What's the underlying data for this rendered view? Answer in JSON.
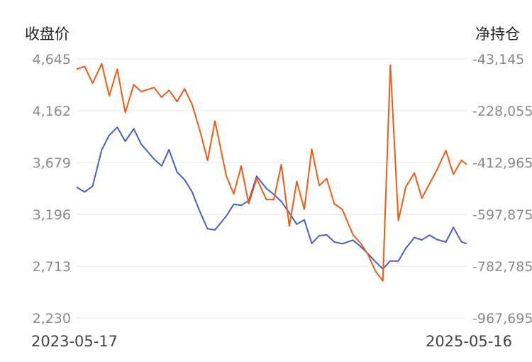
{
  "chart_data": {
    "type": "line",
    "left_axis_title": "收盘价",
    "right_axis_title": "净持仓",
    "left_ticks": [
      "4,645",
      "4,162",
      "3,679",
      "3,196",
      "2,713",
      "2,230"
    ],
    "right_ticks": [
      "-43,145",
      "-228,055",
      "-412,965",
      "-597,875",
      "-782,785",
      "-967,695"
    ],
    "left_range": [
      2230,
      4645
    ],
    "right_range": [
      -967695,
      -43145
    ],
    "x_start_label": "2023-05-17",
    "x_end_label": "2025-05-16",
    "x_range": [
      "2023-05-17",
      "2025-05-16"
    ],
    "grid": true,
    "series": [
      {
        "axis": "left",
        "color": "#4a5fc1",
        "x": [
          "2023-05-17",
          "2023-06-01",
          "2023-06-16",
          "2023-07-03",
          "2023-07-17",
          "2023-08-01",
          "2023-08-16",
          "2023-09-01",
          "2023-09-15",
          "2023-10-09",
          "2023-10-23",
          "2023-11-06",
          "2023-11-21",
          "2023-12-05",
          "2023-12-19",
          "2024-01-03",
          "2024-01-17",
          "2024-01-31",
          "2024-02-21",
          "2024-03-06",
          "2024-03-20",
          "2024-04-03",
          "2024-04-18",
          "2024-05-06",
          "2024-05-20",
          "2024-06-03",
          "2024-06-18",
          "2024-07-02",
          "2024-07-16",
          "2024-07-30",
          "2024-08-13",
          "2024-08-27",
          "2024-09-10",
          "2024-09-25",
          "2024-10-15",
          "2024-10-29",
          "2024-11-12",
          "2024-11-26",
          "2024-12-10",
          "2024-12-24",
          "2025-01-08",
          "2025-01-22",
          "2025-02-07",
          "2025-02-21",
          "2025-03-07",
          "2025-03-21",
          "2025-04-07",
          "2025-04-21",
          "2025-05-06",
          "2025-05-16"
        ],
        "values": [
          3449,
          3405,
          3459,
          3798,
          3933,
          4008,
          3877,
          3993,
          3849,
          3712,
          3647,
          3799,
          3590,
          3519,
          3407,
          3218,
          3061,
          3051,
          3180,
          3290,
          3280,
          3324,
          3552,
          3438,
          3382,
          3316,
          3209,
          3104,
          3145,
          2924,
          2997,
          3005,
          2939,
          2922,
          2956,
          2898,
          2830,
          2755,
          2688,
          2762,
          2761,
          2880,
          2980,
          2958,
          3002,
          2962,
          2938,
          3075,
          2940,
          2923
        ]
      },
      {
        "axis": "right",
        "color": "#f15a12",
        "x": [
          "2023-05-17",
          "2023-06-01",
          "2023-06-16",
          "2023-07-03",
          "2023-07-17",
          "2023-08-01",
          "2023-08-16",
          "2023-09-01",
          "2023-09-15",
          "2023-10-09",
          "2023-10-23",
          "2023-11-06",
          "2023-11-21",
          "2023-12-05",
          "2023-12-19",
          "2024-01-03",
          "2024-01-17",
          "2024-01-31",
          "2024-02-21",
          "2024-03-06",
          "2024-03-20",
          "2024-04-03",
          "2024-04-18",
          "2024-05-06",
          "2024-05-20",
          "2024-06-03",
          "2024-06-18",
          "2024-07-02",
          "2024-07-16",
          "2024-07-30",
          "2024-08-13",
          "2024-08-27",
          "2024-09-10",
          "2024-09-25",
          "2024-10-15",
          "2024-10-29",
          "2024-11-12",
          "2024-11-26",
          "2024-12-10",
          "2024-12-24",
          "2025-01-08",
          "2025-01-22",
          "2025-02-07",
          "2025-02-21",
          "2025-03-07",
          "2025-03-21",
          "2025-04-07",
          "2025-04-21",
          "2025-05-06",
          "2025-05-16"
        ],
        "values": [
          -80000,
          -70000,
          -130000,
          -60000,
          -175000,
          -80000,
          -235000,
          -135000,
          -160000,
          -145000,
          -180000,
          -155000,
          -195000,
          -150000,
          -205000,
          -300000,
          -405000,
          -265000,
          -460000,
          -525000,
          -425000,
          -560000,
          -470000,
          -545000,
          -545000,
          -420000,
          -640000,
          -480000,
          -580000,
          -365000,
          -495000,
          -470000,
          -560000,
          -580000,
          -670000,
          -700000,
          -740000,
          -800000,
          -835000,
          -65000,
          -620000,
          -500000,
          -450000,
          -540000,
          -490000,
          -440000,
          -370000,
          -455000,
          -405000,
          -420000
        ]
      }
    ]
  }
}
